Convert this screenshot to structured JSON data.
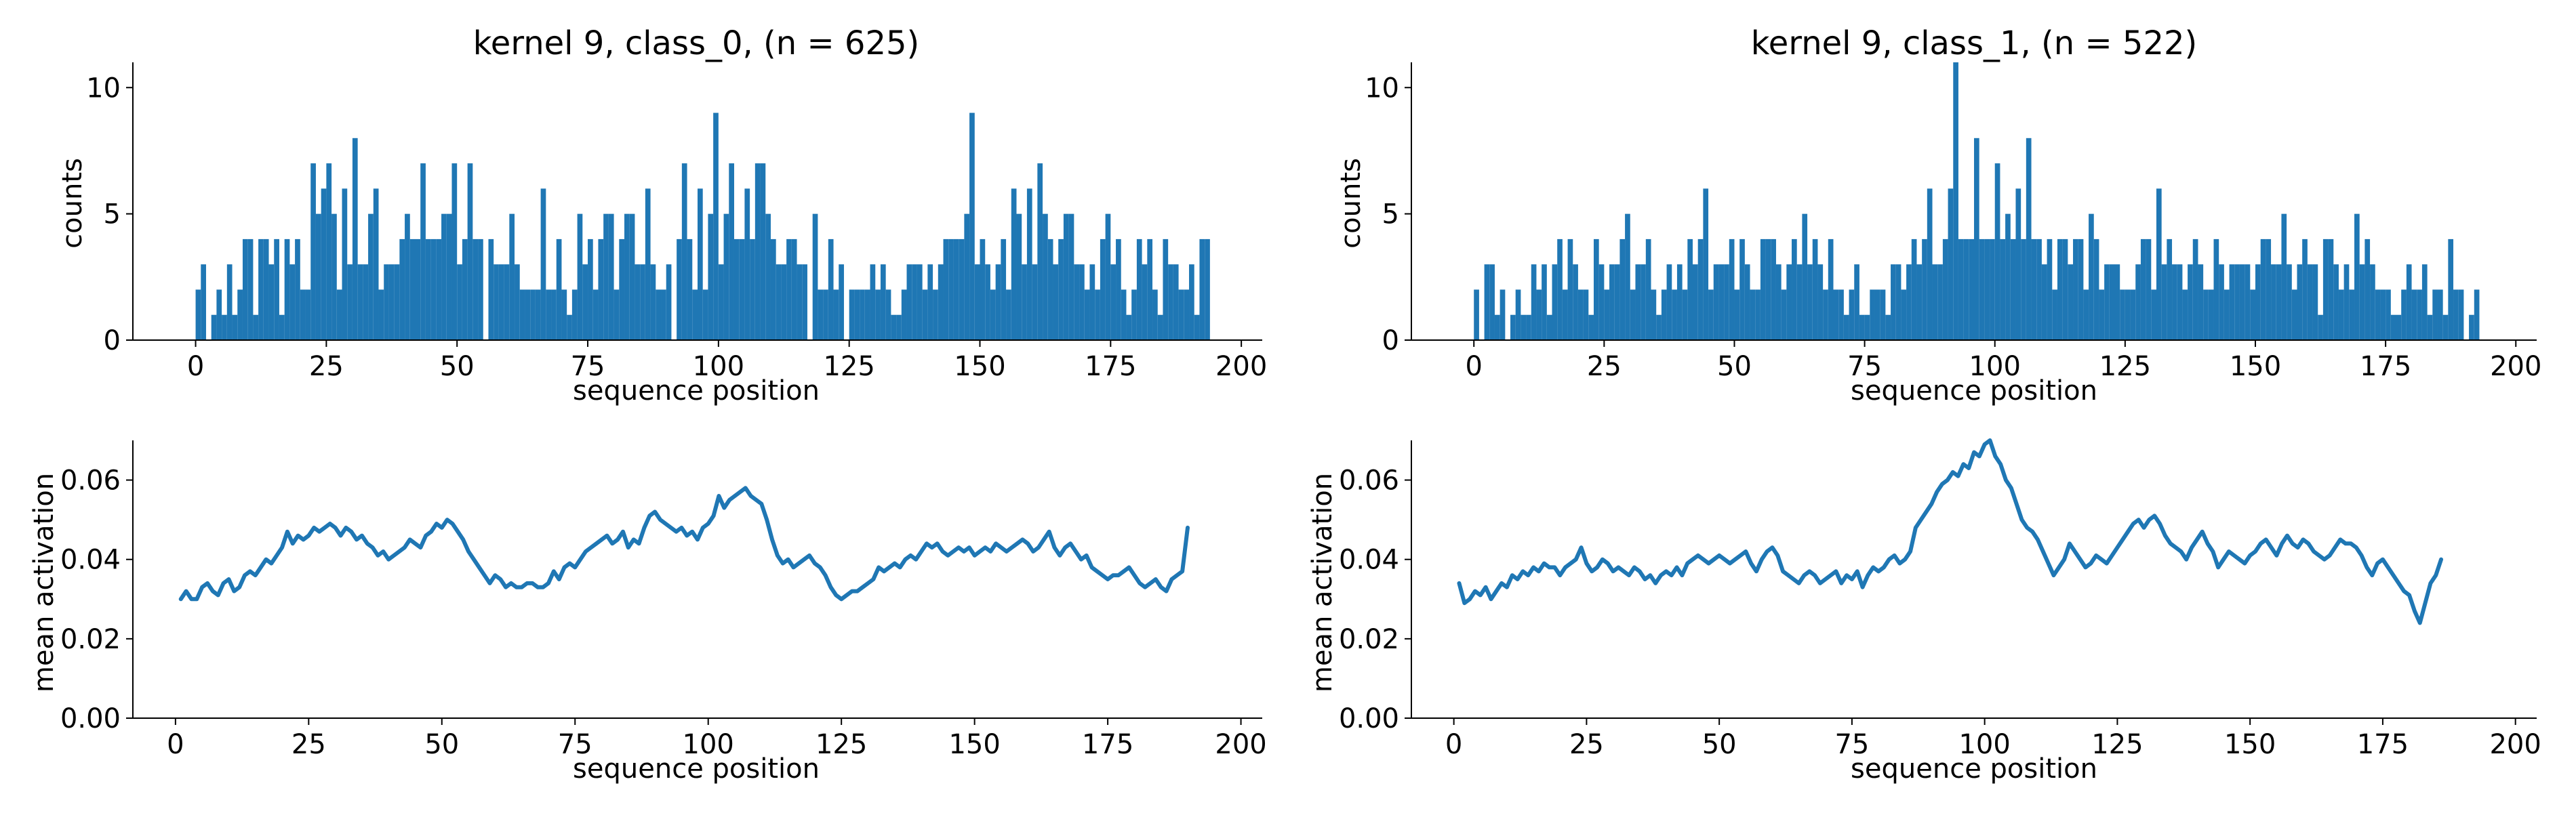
{
  "colors": {
    "series": "#1f77b4",
    "axis": "#000000",
    "background": "#ffffff"
  },
  "chart_data": [
    {
      "id": "hist-class0",
      "type": "bar",
      "title": "kernel 9, class_0, (n = 625)",
      "xlabel": "sequence position",
      "ylabel": "counts",
      "xlim": [
        -12,
        204
      ],
      "ylim": [
        0,
        11
      ],
      "xticks": [
        0,
        25,
        50,
        75,
        100,
        125,
        150,
        175,
        200
      ],
      "yticks": [
        0,
        5,
        10
      ],
      "grid": false,
      "bin_start": 0,
      "bin_width": 1,
      "values": [
        2,
        3,
        0,
        1,
        2,
        1,
        3,
        1,
        2,
        4,
        4,
        1,
        4,
        4,
        3,
        4,
        1,
        4,
        3,
        4,
        2,
        2,
        7,
        5,
        6,
        7,
        5,
        2,
        6,
        3,
        8,
        3,
        3,
        5,
        6,
        2,
        3,
        3,
        3,
        4,
        5,
        4,
        4,
        7,
        4,
        4,
        4,
        5,
        5,
        7,
        3,
        4,
        7,
        4,
        4,
        0,
        4,
        3,
        3,
        3,
        5,
        3,
        2,
        2,
        2,
        2,
        6,
        2,
        2,
        4,
        2,
        1,
        2,
        5,
        3,
        4,
        2,
        4,
        5,
        5,
        2,
        4,
        5,
        5,
        3,
        3,
        6,
        3,
        2,
        2,
        3,
        0,
        4,
        7,
        4,
        2,
        6,
        2,
        5,
        9,
        3,
        5,
        7,
        4,
        4,
        6,
        4,
        7,
        7,
        5,
        4,
        3,
        3,
        4,
        4,
        3,
        3,
        0,
        5,
        2,
        2,
        4,
        2,
        3,
        0,
        2,
        2,
        2,
        2,
        3,
        2,
        3,
        2,
        1,
        1,
        2,
        3,
        3,
        3,
        2,
        3,
        2,
        3,
        4,
        4,
        4,
        4,
        5,
        9,
        3,
        4,
        3,
        2,
        3,
        4,
        2,
        6,
        5,
        3,
        6,
        3,
        7,
        5,
        4,
        3,
        4,
        5,
        5,
        3,
        3,
        2,
        3,
        2,
        4,
        5,
        3,
        4,
        2,
        1,
        2,
        4,
        3,
        4,
        2,
        1,
        4,
        3,
        3,
        2,
        2,
        3,
        1,
        4,
        4
      ],
      "legend": "none"
    },
    {
      "id": "hist-class1",
      "type": "bar",
      "title": "kernel 9, class_1, (n = 522)",
      "xlabel": "sequence position",
      "ylabel": "counts",
      "xlim": [
        -12,
        204
      ],
      "ylim": [
        0,
        11
      ],
      "xticks": [
        0,
        25,
        50,
        75,
        100,
        125,
        150,
        175,
        200
      ],
      "yticks": [
        0,
        5,
        10
      ],
      "grid": false,
      "bin_start": 0,
      "bin_width": 1,
      "values": [
        2,
        0,
        3,
        3,
        1,
        2,
        0,
        1,
        2,
        1,
        1,
        3,
        2,
        3,
        1,
        3,
        4,
        2,
        4,
        3,
        2,
        2,
        1,
        4,
        3,
        2,
        3,
        3,
        4,
        5,
        2,
        3,
        3,
        4,
        2,
        1,
        2,
        3,
        2,
        3,
        2,
        4,
        3,
        4,
        6,
        2,
        3,
        3,
        3,
        4,
        2,
        4,
        3,
        2,
        2,
        4,
        4,
        4,
        3,
        2,
        3,
        4,
        3,
        5,
        3,
        4,
        3,
        2,
        4,
        2,
        2,
        1,
        2,
        3,
        1,
        1,
        2,
        2,
        2,
        1,
        3,
        3,
        2,
        3,
        4,
        3,
        4,
        6,
        3,
        3,
        4,
        6,
        11,
        4,
        4,
        4,
        8,
        4,
        4,
        4,
        7,
        4,
        5,
        4,
        6,
        4,
        8,
        4,
        4,
        3,
        4,
        2,
        4,
        4,
        3,
        4,
        4,
        2,
        5,
        4,
        2,
        3,
        3,
        3,
        2,
        2,
        2,
        3,
        4,
        4,
        2,
        6,
        3,
        4,
        3,
        3,
        2,
        3,
        4,
        3,
        2,
        2,
        4,
        3,
        2,
        3,
        3,
        3,
        3,
        2,
        3,
        4,
        4,
        3,
        3,
        5,
        3,
        2,
        3,
        4,
        3,
        3,
        1,
        4,
        4,
        3,
        2,
        3,
        2,
        5,
        3,
        4,
        3,
        2,
        2,
        2,
        1,
        1,
        2,
        3,
        2,
        2,
        3,
        1,
        2,
        2,
        1,
        4,
        2,
        2,
        0,
        1,
        2
      ],
      "legend": "none"
    },
    {
      "id": "line-class0",
      "type": "line",
      "title": "",
      "xlabel": "sequence position",
      "ylabel": "mean activation",
      "xlim": [
        -8,
        204
      ],
      "ylim": [
        0,
        0.07
      ],
      "xticks": [
        0,
        25,
        50,
        75,
        100,
        125,
        150,
        175,
        200
      ],
      "yticks": [
        0.0,
        0.02,
        0.04,
        0.06
      ],
      "ytick_labels": [
        "0.00",
        "0.02",
        "0.04",
        "0.06"
      ],
      "grid": false,
      "x_start": 1,
      "x_step": 1,
      "values": [
        0.03,
        0.032,
        0.03,
        0.03,
        0.033,
        0.034,
        0.032,
        0.031,
        0.034,
        0.035,
        0.032,
        0.033,
        0.036,
        0.037,
        0.036,
        0.038,
        0.04,
        0.039,
        0.041,
        0.043,
        0.047,
        0.044,
        0.046,
        0.045,
        0.046,
        0.048,
        0.047,
        0.048,
        0.049,
        0.048,
        0.046,
        0.048,
        0.047,
        0.045,
        0.046,
        0.044,
        0.043,
        0.041,
        0.042,
        0.04,
        0.041,
        0.042,
        0.043,
        0.045,
        0.044,
        0.043,
        0.046,
        0.047,
        0.049,
        0.048,
        0.05,
        0.049,
        0.047,
        0.045,
        0.042,
        0.04,
        0.038,
        0.036,
        0.034,
        0.036,
        0.035,
        0.033,
        0.034,
        0.033,
        0.033,
        0.034,
        0.034,
        0.033,
        0.033,
        0.034,
        0.037,
        0.035,
        0.038,
        0.039,
        0.038,
        0.04,
        0.042,
        0.043,
        0.044,
        0.045,
        0.046,
        0.044,
        0.045,
        0.047,
        0.043,
        0.045,
        0.044,
        0.048,
        0.051,
        0.052,
        0.05,
        0.049,
        0.048,
        0.047,
        0.048,
        0.046,
        0.047,
        0.045,
        0.048,
        0.049,
        0.051,
        0.056,
        0.053,
        0.055,
        0.056,
        0.057,
        0.058,
        0.056,
        0.055,
        0.054,
        0.05,
        0.045,
        0.041,
        0.039,
        0.04,
        0.038,
        0.039,
        0.04,
        0.041,
        0.039,
        0.038,
        0.036,
        0.033,
        0.031,
        0.03,
        0.031,
        0.032,
        0.032,
        0.033,
        0.034,
        0.035,
        0.038,
        0.037,
        0.038,
        0.039,
        0.038,
        0.04,
        0.041,
        0.04,
        0.042,
        0.044,
        0.043,
        0.044,
        0.042,
        0.041,
        0.042,
        0.043,
        0.042,
        0.043,
        0.041,
        0.042,
        0.043,
        0.042,
        0.044,
        0.043,
        0.042,
        0.043,
        0.044,
        0.045,
        0.044,
        0.042,
        0.043,
        0.045,
        0.047,
        0.043,
        0.041,
        0.043,
        0.044,
        0.042,
        0.04,
        0.041,
        0.038,
        0.037,
        0.036,
        0.035,
        0.036,
        0.036,
        0.037,
        0.038,
        0.036,
        0.034,
        0.033,
        0.034,
        0.035,
        0.033,
        0.032,
        0.035,
        0.036,
        0.037,
        0.048
      ],
      "legend": "none"
    },
    {
      "id": "line-class1",
      "type": "line",
      "title": "",
      "xlabel": "sequence position",
      "ylabel": "mean activation",
      "xlim": [
        -8,
        204
      ],
      "ylim": [
        0,
        0.07
      ],
      "xticks": [
        0,
        25,
        50,
        75,
        100,
        125,
        150,
        175,
        200
      ],
      "yticks": [
        0.0,
        0.02,
        0.04,
        0.06
      ],
      "ytick_labels": [
        "0.00",
        "0.02",
        "0.04",
        "0.06"
      ],
      "grid": false,
      "x_start": 1,
      "x_step": 1,
      "values": [
        0.034,
        0.029,
        0.03,
        0.032,
        0.031,
        0.033,
        0.03,
        0.032,
        0.034,
        0.033,
        0.036,
        0.035,
        0.037,
        0.036,
        0.038,
        0.037,
        0.039,
        0.038,
        0.038,
        0.036,
        0.038,
        0.039,
        0.04,
        0.043,
        0.039,
        0.037,
        0.038,
        0.04,
        0.039,
        0.037,
        0.038,
        0.037,
        0.036,
        0.038,
        0.037,
        0.035,
        0.036,
        0.034,
        0.036,
        0.037,
        0.036,
        0.038,
        0.036,
        0.039,
        0.04,
        0.041,
        0.04,
        0.039,
        0.04,
        0.041,
        0.04,
        0.039,
        0.04,
        0.041,
        0.042,
        0.039,
        0.037,
        0.04,
        0.042,
        0.043,
        0.041,
        0.037,
        0.036,
        0.035,
        0.034,
        0.036,
        0.037,
        0.036,
        0.034,
        0.035,
        0.036,
        0.037,
        0.034,
        0.036,
        0.035,
        0.037,
        0.033,
        0.036,
        0.038,
        0.037,
        0.038,
        0.04,
        0.041,
        0.039,
        0.04,
        0.042,
        0.048,
        0.05,
        0.052,
        0.054,
        0.057,
        0.059,
        0.06,
        0.062,
        0.061,
        0.064,
        0.063,
        0.067,
        0.066,
        0.069,
        0.07,
        0.066,
        0.064,
        0.06,
        0.058,
        0.054,
        0.05,
        0.048,
        0.047,
        0.045,
        0.042,
        0.039,
        0.036,
        0.038,
        0.04,
        0.044,
        0.042,
        0.04,
        0.038,
        0.039,
        0.041,
        0.04,
        0.039,
        0.041,
        0.043,
        0.045,
        0.047,
        0.049,
        0.05,
        0.048,
        0.05,
        0.051,
        0.049,
        0.046,
        0.044,
        0.043,
        0.042,
        0.04,
        0.043,
        0.045,
        0.047,
        0.044,
        0.042,
        0.038,
        0.04,
        0.042,
        0.041,
        0.04,
        0.039,
        0.041,
        0.042,
        0.044,
        0.045,
        0.043,
        0.041,
        0.044,
        0.046,
        0.044,
        0.043,
        0.045,
        0.044,
        0.042,
        0.041,
        0.04,
        0.041,
        0.043,
        0.045,
        0.044,
        0.044,
        0.043,
        0.041,
        0.038,
        0.036,
        0.039,
        0.04,
        0.038,
        0.036,
        0.034,
        0.032,
        0.031,
        0.027,
        0.024,
        0.029,
        0.034,
        0.036,
        0.04
      ],
      "legend": "none"
    }
  ]
}
